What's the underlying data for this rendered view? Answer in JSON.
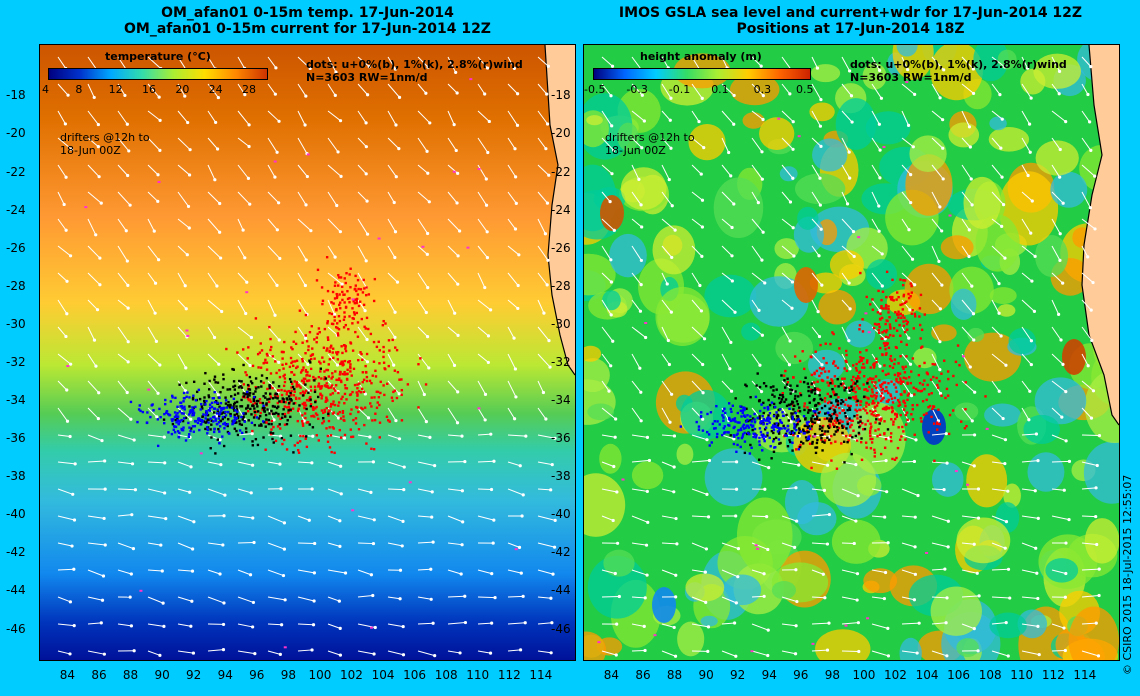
{
  "left": {
    "title_line1": "OM_afan01 0-15m temp. 17-Jun-2014",
    "title_line2": "OM_afan01 0-15m current for 17-Jun-2014 12Z",
    "colorbar_title": "temperature (°C)",
    "colorbar_ticks": [
      "4",
      "8",
      "12",
      "16",
      "20",
      "24",
      "28"
    ],
    "colorbar_colors": [
      "#000080",
      "#0033cc",
      "#00aaff",
      "#33ddaa",
      "#aaee33",
      "#ffdd00",
      "#ff8800",
      "#cc3300"
    ],
    "dots_note_line1": "dots: u+0%(b), 1%(k), 2.8%(r)wind",
    "dots_note_line2": "N=3603 RW=1nm/d",
    "drifters_note_line1": "drifters @12h to",
    "drifters_note_line2": "18-Jun 00Z"
  },
  "right": {
    "title_line1": "IMOS GSLA sea level and current+wdr for 17-Jun-2014 12Z",
    "title_line2": "Positions at 17-Jun-2014 18Z",
    "colorbar_title": "height anomaly (m)",
    "colorbar_ticks": [
      "-0.5",
      "-0.3",
      "-0.1",
      "0.1",
      "0.3",
      "0.5"
    ],
    "colorbar_colors": [
      "#000080",
      "#0066ff",
      "#00ccff",
      "#33dd66",
      "#aaee33",
      "#ffcc00",
      "#ff6600",
      "#cc2200"
    ],
    "dots_note_line1": "dots: u+0%(b), 1%(k), 2.8%(r)wind",
    "dots_note_line2": "N=3603 RW=1nm/d",
    "drifters_note_line1": "drifters @12h to",
    "drifters_note_line2": "18-Jun 00Z"
  },
  "axes": {
    "y_ticks": [
      "-18",
      "-20",
      "-22",
      "-24",
      "-26",
      "-28",
      "-30",
      "-32",
      "-34",
      "-36",
      "-38",
      "-40",
      "-42",
      "-44",
      "-46"
    ],
    "x_ticks": [
      "84",
      "86",
      "88",
      "90",
      "92",
      "94",
      "96",
      "98",
      "100",
      "102",
      "104",
      "106",
      "108",
      "110",
      "112",
      "114"
    ],
    "lat_range": [
      -15.3,
      -47.6
    ],
    "lon_range": [
      82.2,
      116.1
    ]
  },
  "credit": "© CSIRO 2015   18-Jul-2015 12:55:07",
  "colors": {
    "background": "#00ccff",
    "land": "#ffcc99",
    "drifter_blue": "#0000ff",
    "drifter_black": "#000000",
    "drifter_red": "#ff0000",
    "arrows": "#ffffff"
  }
}
